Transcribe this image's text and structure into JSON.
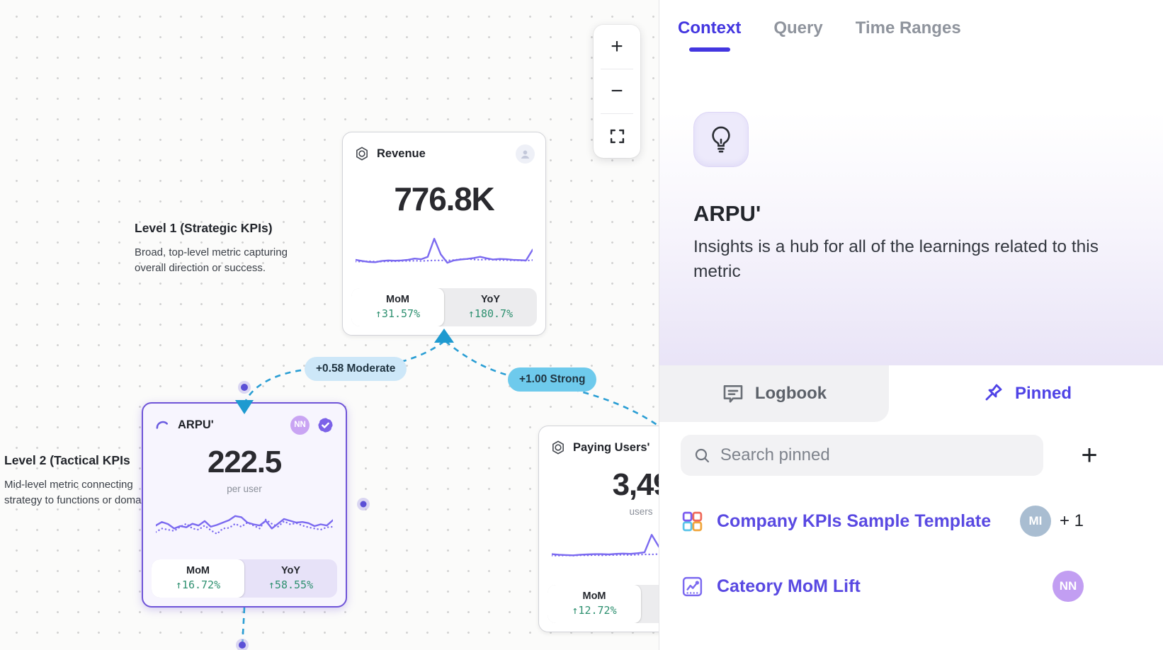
{
  "canvas": {
    "zoom_controls": {
      "zoom_in": "+",
      "zoom_out": "−"
    },
    "notes": {
      "level1": {
        "title": "Level 1 (Strategic KPIs)",
        "lines": [
          "Broad, top-level metric capturing",
          "overall direction or success."
        ]
      },
      "level2": {
        "title": "Level 2 (Tactical KPIs",
        "lines": [
          "Mid-level metric connecting",
          "strategy to functions or doma"
        ]
      }
    },
    "edges": [
      {
        "label": "+0.58 Moderate",
        "strength": "moderate"
      },
      {
        "label": "+1.00 Strong",
        "strength": "strong"
      }
    ],
    "cards": [
      {
        "id": "revenue",
        "title": "Revenue",
        "value": "776.8K",
        "unit": "",
        "stats": [
          {
            "label": "MoM",
            "value": "↑31.57%"
          },
          {
            "label": "YoY",
            "value": "↑180.7%"
          }
        ]
      },
      {
        "id": "arpu",
        "title": "ARPU'",
        "value": "222.5",
        "unit": "per user",
        "avatar": "NN",
        "verified": true,
        "stats": [
          {
            "label": "MoM",
            "value": "↑16.72%"
          },
          {
            "label": "YoY",
            "value": "↑58.55%"
          }
        ]
      },
      {
        "id": "paying_users",
        "title": "Paying Users'",
        "value": "3,49",
        "unit": "users",
        "stats": [
          {
            "label": "MoM",
            "value": "↑12.72%"
          }
        ]
      }
    ]
  },
  "sparklines": {
    "revenue": {
      "color": "#7b6af0",
      "solid": [
        24,
        20,
        17,
        16,
        20,
        22,
        21,
        22,
        24,
        28,
        26,
        34,
        95,
        42,
        14,
        22,
        25,
        27,
        30,
        34,
        29,
        25,
        27,
        26,
        24,
        23,
        22,
        58
      ],
      "dotted": [
        18,
        18,
        19,
        18,
        18,
        19,
        19,
        20,
        20,
        21,
        20,
        21,
        22,
        22,
        22,
        23,
        26,
        27,
        25,
        24,
        25,
        24,
        23,
        23,
        22,
        22,
        21,
        23
      ]
    },
    "arpu": {
      "color": "#7b6af0",
      "solid": [
        40,
        52,
        45,
        30,
        38,
        34,
        46,
        40,
        55,
        36,
        42,
        50,
        58,
        72,
        68,
        50,
        44,
        40,
        56,
        30,
        46,
        62,
        56,
        50,
        52,
        48,
        38,
        44,
        40,
        58
      ],
      "dotted": [
        18,
        30,
        26,
        22,
        36,
        46,
        30,
        26,
        40,
        24,
        12,
        30,
        32,
        46,
        36,
        50,
        40,
        30,
        60,
        46,
        36,
        54,
        44,
        48,
        40,
        34,
        30,
        26,
        34,
        36
      ]
    },
    "paying_users": {
      "color": "#7b6af0",
      "solid": [
        20,
        18,
        17,
        16,
        18,
        19,
        20,
        20,
        19,
        21,
        22,
        21,
        23,
        26,
        85,
        45,
        22,
        24,
        23,
        25,
        24,
        26,
        25,
        27,
        26,
        28
      ],
      "dotted": [
        15,
        15,
        16,
        15,
        16,
        16,
        17,
        16,
        17,
        17,
        18,
        17,
        18,
        19,
        19,
        20,
        19,
        19,
        20,
        20,
        19,
        20,
        20,
        21,
        20,
        21
      ]
    }
  },
  "panel": {
    "tabs": [
      {
        "label": "Context",
        "active": true
      },
      {
        "label": "Query"
      },
      {
        "label": "Time Ranges"
      }
    ],
    "hero": {
      "title": "ARPU'",
      "description": "Insights is a hub for all of the learnings related to this metric"
    },
    "sections": {
      "logbook": "Logbook",
      "pinned": "Pinned"
    },
    "search": {
      "placeholder": "Search pinned"
    },
    "add_button": "+",
    "pinned_items": [
      {
        "label": "Company KPIs Sample Template",
        "avatar": "MI",
        "extra": "+ 1"
      },
      {
        "label": "Cateory MoM Lift",
        "avatar": "NN"
      }
    ]
  },
  "colors": {
    "accent_indigo": "#4336e0",
    "link_purple": "#5949e2",
    "spark_purple": "#7b6af0",
    "positive_green": "#2e9070",
    "edge_blue": "#2a9ed4",
    "edge_label_moderate_bg": "#cde7f8",
    "edge_label_strong_bg": "#6ecaec",
    "selected_card_border": "#6f54d8",
    "avatar_nn": "#c29ef2",
    "avatar_mi": "#a9bdd1"
  }
}
